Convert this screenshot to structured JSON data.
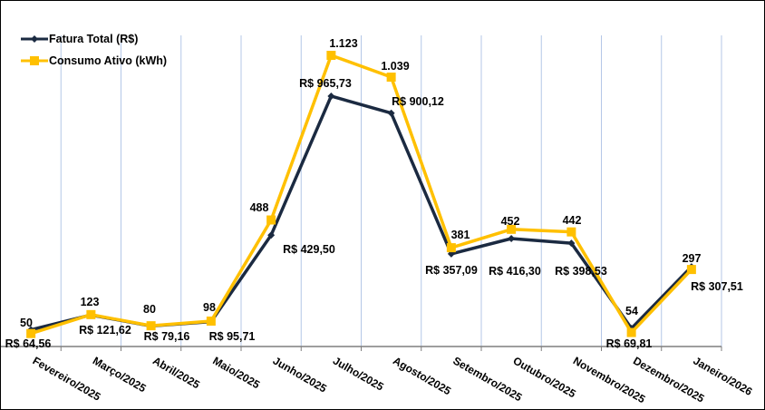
{
  "chart_data": {
    "type": "line",
    "title": "",
    "xlabel": "",
    "ylabel": "",
    "ylim": [
      0,
      1200
    ],
    "grid": "vertical",
    "legend_position": "top-left",
    "categories": [
      "Fevereiro/2025",
      "Março/2025",
      "Abril/2025",
      "Maio/2025",
      "Junho/2025",
      "Julho/2025",
      "Agosto/2025",
      "Setembro/2025",
      "Outubro/2025",
      "Novembro/2025",
      "Dezembro/2025",
      "Janeiro/2026"
    ],
    "series": [
      {
        "name": "Fatura Total (R$)",
        "color": "#1b2a41",
        "values": [
          64.56,
          121.62,
          79.16,
          95.71,
          429.5,
          965.73,
          900.12,
          357.09,
          416.3,
          398.53,
          69.81,
          307.51
        ],
        "labels": [
          "R$ 64,56",
          "R$ 121,62",
          "R$ 79,16",
          "R$ 95,71",
          "R$ 429,50",
          "R$ 965,73",
          "R$ 900,12",
          "R$ 357,09",
          "R$ 416,30",
          "R$ 398,53",
          "R$ 69,81",
          "R$ 307,51"
        ]
      },
      {
        "name": "Consumo Ativo (kWh)",
        "color": "#ffc000",
        "values": [
          50,
          123,
          80,
          98,
          488,
          1123,
          1039,
          381,
          452,
          442,
          54,
          297
        ],
        "labels": [
          "50",
          "123",
          "80",
          "98",
          "488",
          "1.123",
          "1.039",
          "381",
          "452",
          "442",
          "54",
          "297"
        ]
      }
    ]
  }
}
